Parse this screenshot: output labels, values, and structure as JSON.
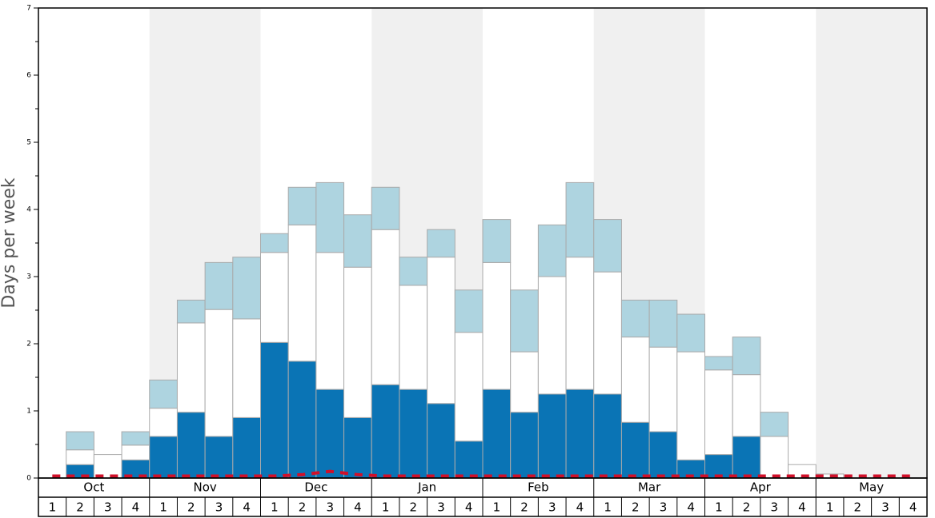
{
  "chart_data": {
    "type": "stacked-bar",
    "y_label": "Days per week",
    "months": [
      "Oct",
      "Nov",
      "Dec",
      "Jan",
      "Feb",
      "Mar",
      "Apr",
      "May"
    ],
    "categories": [
      "1",
      "2",
      "3",
      "4",
      "1",
      "2",
      "3",
      "4",
      "1",
      "2",
      "3",
      "4",
      "1",
      "2",
      "3",
      "4",
      "1",
      "2",
      "3",
      "4",
      "1",
      "2",
      "3",
      "4",
      "1",
      "2",
      "3",
      "4",
      "1",
      "2",
      "3",
      "4"
    ],
    "series": [
      {
        "color": "#0a74b5",
        "values": [
          0,
          0.2,
          0,
          0.27,
          0.62,
          0.98,
          0.62,
          0.9,
          2.02,
          1.74,
          1.32,
          0.9,
          1.39,
          1.32,
          1.11,
          0.55,
          1.32,
          0.98,
          1.25,
          1.32,
          1.25,
          0.83,
          0.69,
          0.27,
          0.35,
          0.62,
          0,
          0,
          0,
          0,
          0,
          0
        ]
      },
      {
        "color": "#ffffff",
        "values": [
          0,
          0.22,
          0.35,
          0.22,
          0.42,
          1.33,
          1.89,
          1.47,
          1.34,
          2.03,
          2.04,
          2.24,
          2.31,
          1.55,
          2.18,
          1.62,
          1.89,
          0.9,
          1.75,
          1.97,
          1.82,
          1.27,
          1.26,
          1.61,
          1.26,
          0.92,
          0.62,
          0.2,
          0.06,
          0,
          0,
          0
        ]
      },
      {
        "color": "#aed4e0",
        "values": [
          0,
          0.27,
          0,
          0.2,
          0.42,
          0.34,
          0.7,
          0.92,
          0.28,
          0.56,
          1.04,
          0.78,
          0.63,
          0.42,
          0.41,
          0.63,
          0.64,
          0.92,
          0.77,
          1.11,
          0.78,
          0.55,
          0.7,
          0.56,
          0.2,
          0.56,
          0.36,
          0,
          0,
          0,
          0,
          0
        ]
      }
    ],
    "line": {
      "color": "#d0102a",
      "values": [
        0.03,
        0.03,
        0.03,
        0.03,
        0.03,
        0.03,
        0.03,
        0.03,
        0.03,
        0.05,
        0.1,
        0.05,
        0.03,
        0.03,
        0.03,
        0.03,
        0.03,
        0.03,
        0.03,
        0.03,
        0.03,
        0.03,
        0.03,
        0.03,
        0.03,
        0.03,
        0.03,
        0.03,
        0.03,
        0.03,
        0.03,
        0.03
      ]
    },
    "ylim": [
      0,
      7
    ],
    "yticks": [
      0,
      1,
      2,
      3,
      4,
      5,
      6,
      7
    ],
    "yminorticks": [
      0.5,
      1.5,
      2.5,
      3.5,
      4.5,
      5.5,
      6.5
    ],
    "shade_color": "#f0f0f0"
  }
}
